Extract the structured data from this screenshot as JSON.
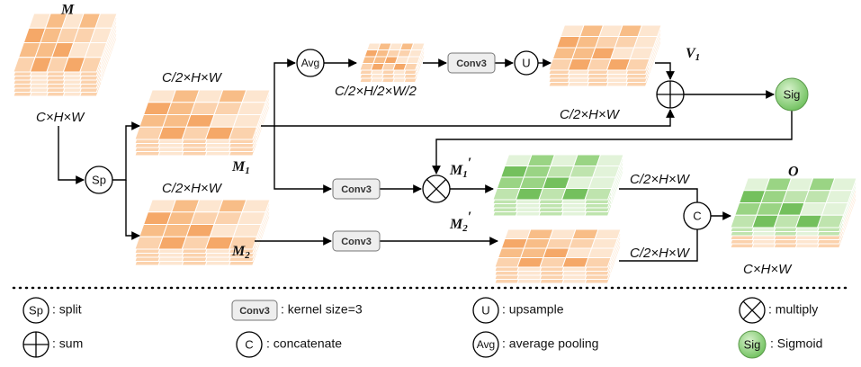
{
  "tensors": {
    "m": {
      "name": "M",
      "dims": "C×H×W"
    },
    "m1": {
      "name": "M",
      "sub": "1",
      "dims": "C/2×H×W"
    },
    "m2": {
      "name": "M",
      "sub": "2",
      "dims": "C/2×H×W"
    },
    "pooled": {
      "dims": "C/2×H/2×W/2"
    },
    "v1": {
      "name": "V",
      "sub": "1",
      "dims": "C/2×H×W"
    },
    "m1p": {
      "name": "M",
      "sub": "1",
      "prime": "′"
    },
    "m2p": {
      "name": "M",
      "sub": "2",
      "prime": "′"
    },
    "o": {
      "name": "O",
      "dims": "C×H×W"
    }
  },
  "concat_input_dims": [
    "C/2×H×W",
    "C/2×H×W"
  ],
  "operators": {
    "split": "Sp",
    "avg": "Avg",
    "conv_a": "Conv3",
    "up": "U",
    "sig": "Sig",
    "conv_b": "Conv3",
    "conv_c": "Conv3",
    "concat": "C"
  },
  "legend": [
    {
      "symbol": "Sp",
      "text": ": split"
    },
    {
      "symbol": "Conv3",
      "text": ": kernel size=3"
    },
    {
      "symbol": "U",
      "text": ": upsample"
    },
    {
      "text": ": multiply"
    },
    {
      "text": ": sum"
    },
    {
      "symbol": "C",
      "text": ": concatenate"
    },
    {
      "symbol": "Avg",
      "text": ": average pooling"
    },
    {
      "symbol": "Sig",
      "text": ": Sigmoid"
    }
  ]
}
